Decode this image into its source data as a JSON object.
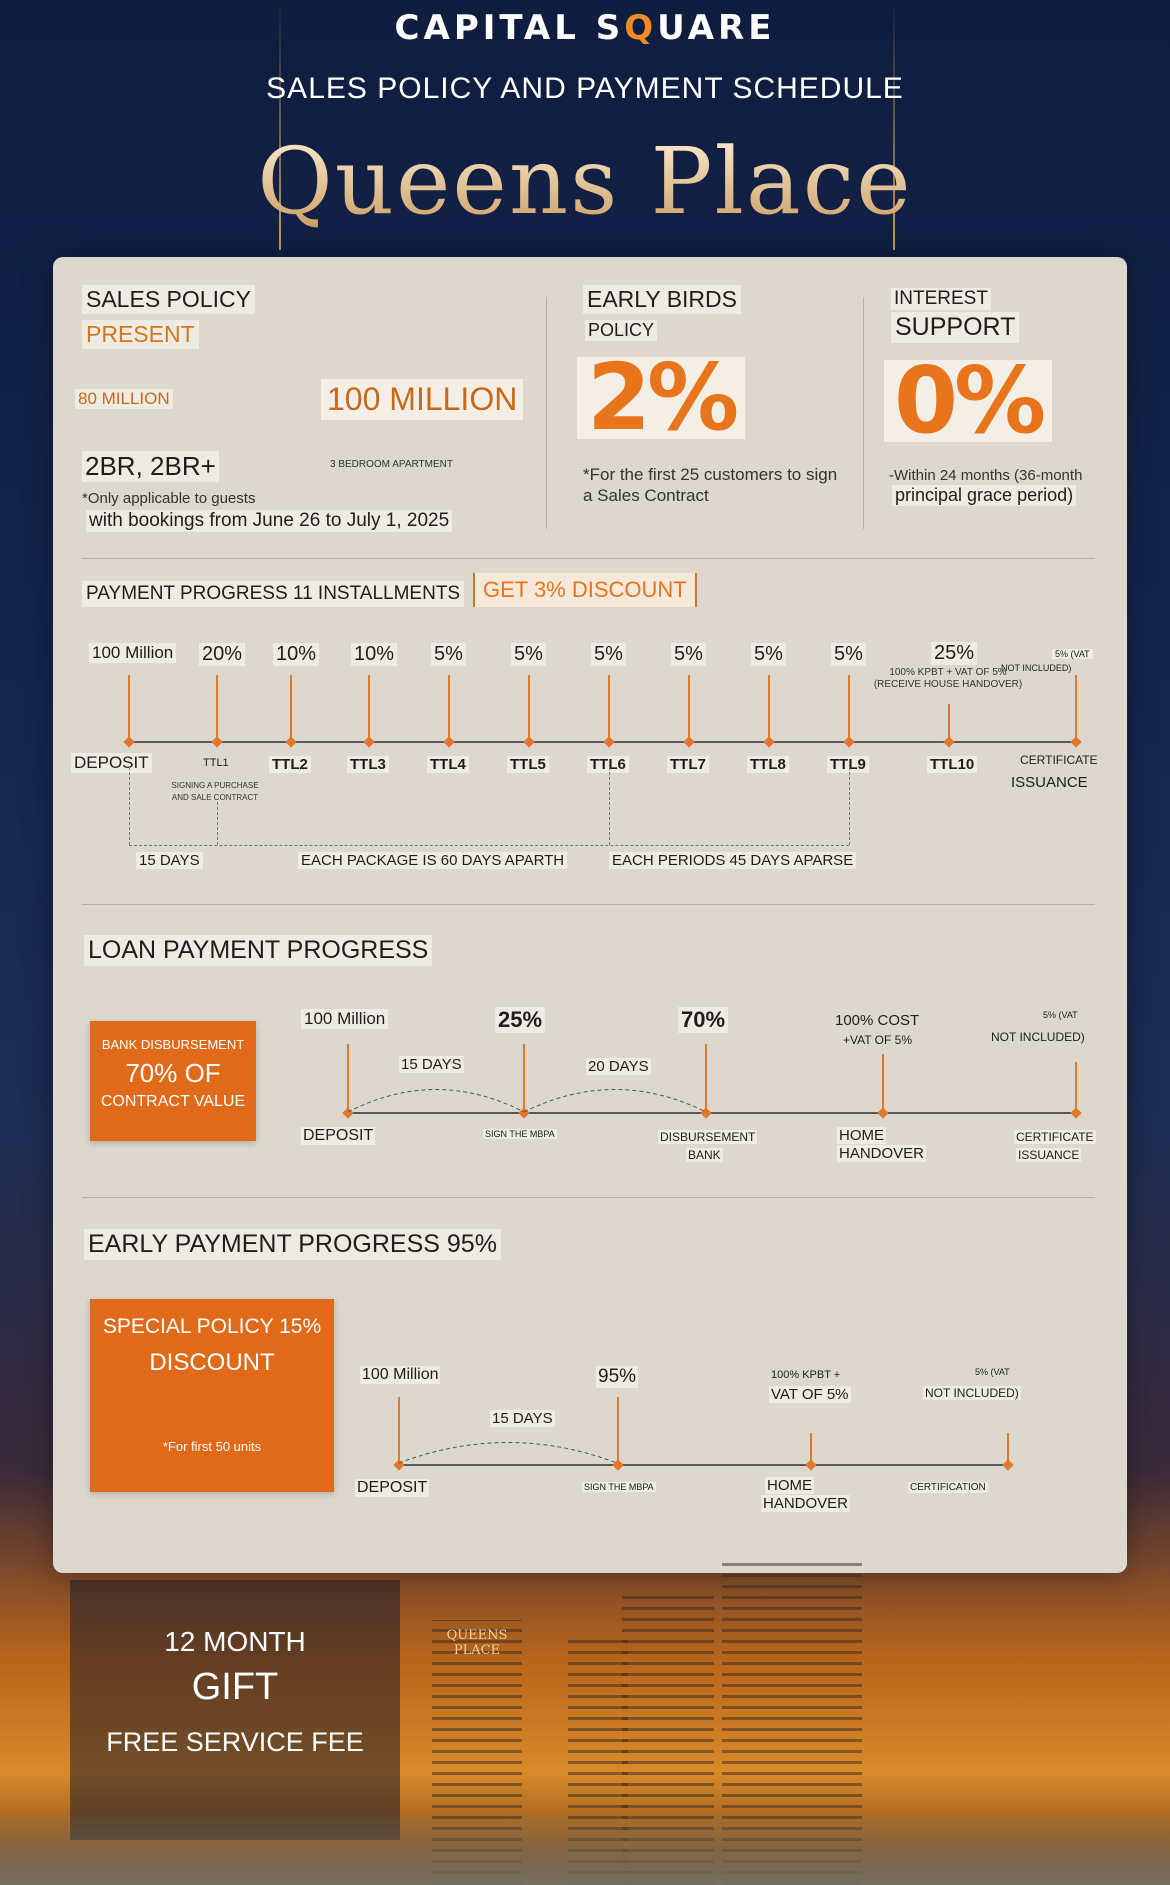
{
  "header": {
    "logo_left": "CAPITAL S",
    "logo_q": "Q",
    "logo_right": "UARE",
    "subtitle": "SALES POLICY AND PAYMENT SCHEDULE",
    "title": "Queens Place"
  },
  "sales_policy": {
    "heading": "SALES POLICY",
    "present": "PRESENT",
    "old_price": "80 MILLION",
    "new_price": "100 MILLION",
    "unit_types": "2BR, 2BR+",
    "unit_desc": "3 BEDROOM APARTMENT",
    "note1": "*Only applicable to guests",
    "note2": "with bookings from June 26 to July 1, 2025"
  },
  "early_birds": {
    "heading": "EARLY BIRDS",
    "sub": "POLICY",
    "value": "2%",
    "note": "*For the first 25 customers to sign a Sales Contract"
  },
  "interest": {
    "heading": "INTEREST",
    "sub": "SUPPORT",
    "value": "0%",
    "note1": "-Within 24 months (36-month",
    "note2": "principal grace period)"
  },
  "payment_progress": {
    "heading": "PAYMENT PROGRESS 11 INSTALLMENTS",
    "badge": "GET 3% DISCOUNT",
    "amounts": [
      "100 Million",
      "20%",
      "10%",
      "10%",
      "5%",
      "5%",
      "5%",
      "5%",
      "5%",
      "5%",
      "25%",
      "5% (VAT"
    ],
    "amount_notes": {
      "ttl10": "100% KPBT + VAT OF 5% (RECEIVE HOUSE HANDOVER)",
      "cert": "NOT INCLUDED)"
    },
    "stages": [
      "DEPOSIT",
      "TTL1",
      "TTL2",
      "TTL3",
      "TTL4",
      "TTL5",
      "TTL6",
      "TTL7",
      "TTL8",
      "TTL9",
      "TTL10",
      "CERTIFICATE"
    ],
    "cert_line2": "ISSUANCE",
    "ttl1_note": "SIGNING A PURCHASE AND SALE CONTRACT",
    "interval1": "15 DAYS",
    "interval2": "EACH PACKAGE IS 60 DAYS APARTH",
    "interval3": "EACH PERIODS 45 DAYS APARSE"
  },
  "loan": {
    "heading": "LOAN PAYMENT PROGRESS",
    "box_line1": "BANK DISBURSEMENT",
    "box_line2": "70% OF",
    "box_line3": "CONTRACT VALUE",
    "amounts": [
      "100 Million",
      "25%",
      "70%",
      "100% COST",
      "5% (VAT"
    ],
    "amount_sub": {
      "cost": "+VAT OF 5%",
      "vat": "NOT INCLUDED)"
    },
    "gap1": "15 DAYS",
    "gap2": "20 DAYS",
    "stages": [
      "DEPOSIT",
      "SIGN THE MBPA",
      "DISBURSEMENT",
      "HOME",
      "CERTIFICATE"
    ],
    "stages_line2": [
      "",
      "",
      "BANK",
      "HANDOVER",
      "ISSUANCE"
    ]
  },
  "early_payment": {
    "heading": "EARLY PAYMENT PROGRESS 95%",
    "box_line1": "SPECIAL POLICY 15%",
    "box_line2": "DISCOUNT",
    "box_note": "*For first 50 units",
    "amounts": [
      "100 Million",
      "95%",
      "100% KPBT +",
      "5% (VAT"
    ],
    "amount_sub": {
      "kpbt": "VAT OF 5%",
      "vat": "NOT INCLUDED)"
    },
    "gap1": "15 DAYS",
    "stages": [
      "DEPOSIT",
      "SIGN THE MBPA",
      "HOME",
      "CERTIFICATION"
    ],
    "stages_line2": [
      "",
      "",
      "HANDOVER",
      ""
    ]
  },
  "footer": {
    "gift_line1": "12 MONTH",
    "gift_line2": "GIFT",
    "gift_line3": "FREE SERVICE FEE",
    "building_sign": "QUEENS PLACE"
  }
}
